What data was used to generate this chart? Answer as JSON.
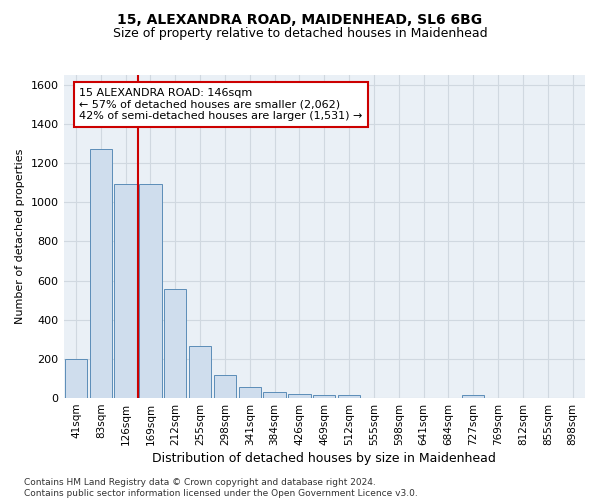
{
  "title_line1": "15, ALEXANDRA ROAD, MAIDENHEAD, SL6 6BG",
  "title_line2": "Size of property relative to detached houses in Maidenhead",
  "xlabel": "Distribution of detached houses by size in Maidenhead",
  "ylabel": "Number of detached properties",
  "footnote": "Contains HM Land Registry data © Crown copyright and database right 2024.\nContains public sector information licensed under the Open Government Licence v3.0.",
  "categories": [
    "41sqm",
    "83sqm",
    "126sqm",
    "169sqm",
    "212sqm",
    "255sqm",
    "298sqm",
    "341sqm",
    "384sqm",
    "426sqm",
    "469sqm",
    "512sqm",
    "555sqm",
    "598sqm",
    "641sqm",
    "684sqm",
    "727sqm",
    "769sqm",
    "812sqm",
    "855sqm",
    "898sqm"
  ],
  "values": [
    197,
    1270,
    1095,
    1095,
    555,
    265,
    120,
    55,
    30,
    20,
    15,
    15,
    0,
    0,
    0,
    0,
    15,
    0,
    0,
    0,
    0
  ],
  "bar_color": "#cfdded",
  "bar_edge_color": "#5b8db8",
  "ylim": [
    0,
    1650
  ],
  "yticks": [
    0,
    200,
    400,
    600,
    800,
    1000,
    1200,
    1400,
    1600
  ],
  "vline_color": "#cc0000",
  "vline_x": 2.5,
  "annotation_text": "15 ALEXANDRA ROAD: 146sqm\n← 57% of detached houses are smaller (2,062)\n42% of semi-detached houses are larger (1,531) →",
  "box_color": "#ffffff",
  "box_edge_color": "#cc0000",
  "grid_color": "#d0d8e0",
  "background_color": "#eaf0f6",
  "fig_width": 6.0,
  "fig_height": 5.0,
  "dpi": 100
}
